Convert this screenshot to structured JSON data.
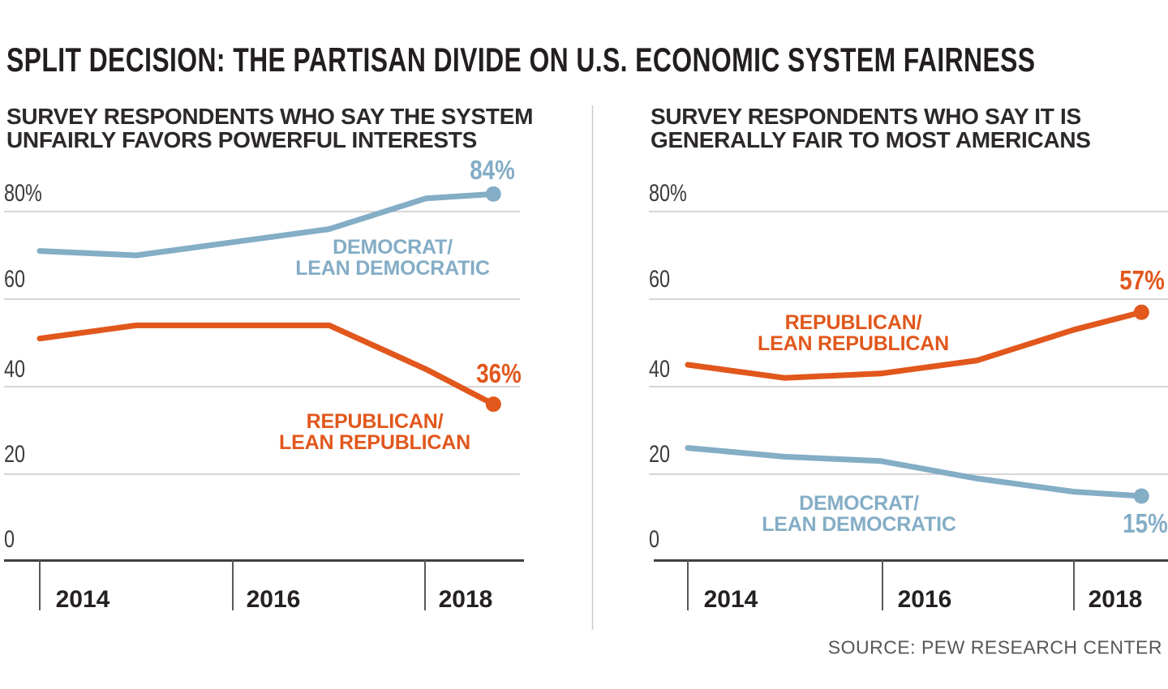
{
  "page": {
    "title": "SPLIT DECISION: THE PARTISAN DIVIDE ON U.S. ECONOMIC SYSTEM FAIRNESS",
    "source": "SOURCE: PEW RESEARCH CENTER",
    "background": "#ffffff",
    "gridline_color": "#c9c9c9",
    "axis_color": "#403f41"
  },
  "chart_data": [
    {
      "type": "line",
      "subtitle": "SURVEY RESPONDENTS WHO SAY THE SYSTEM\nUNFAIRLY FAVORS POWERFUL INTERESTS",
      "x": [
        2014,
        2015,
        2016,
        2017,
        2018,
        2018.7
      ],
      "x_tick_labels": [
        "2014",
        "2016",
        "2018"
      ],
      "y_tick_labels": [
        "80%",
        "60",
        "40",
        "20",
        "0"
      ],
      "y_gridline_values": [
        80,
        60,
        40,
        20
      ],
      "ylim": [
        0,
        90
      ],
      "grid": true,
      "legend_position": "inline-annotations",
      "series": [
        {
          "name": "Democrat/Lean Democratic",
          "label": "DEMOCRAT/\nLEAN DEMOCRATIC",
          "end_label": "84%",
          "color": "#84adc6",
          "values": [
            71,
            70,
            73,
            76,
            83,
            84
          ]
        },
        {
          "name": "Republican/Lean Republican",
          "label": "REPUBLICAN/\nLEAN REPUBLICAN",
          "end_label": "36%",
          "color": "#e1571c",
          "values": [
            51,
            54,
            54,
            54,
            44,
            36
          ]
        }
      ]
    },
    {
      "type": "line",
      "subtitle": "SURVEY RESPONDENTS WHO SAY IT IS\nGENERALLY FAIR TO MOST AMERICANS",
      "x": [
        2014,
        2015,
        2016,
        2017,
        2018,
        2018.7
      ],
      "x_tick_labels": [
        "2014",
        "2016",
        "2018"
      ],
      "y_tick_labels": [
        "80%",
        "60",
        "40",
        "20",
        "0"
      ],
      "y_gridline_values": [
        80,
        60,
        40,
        20
      ],
      "ylim": [
        0,
        90
      ],
      "grid": true,
      "legend_position": "inline-annotations",
      "series": [
        {
          "name": "Republican/Lean Republican",
          "label": "REPUBLICAN/\nLEAN REPUBLICAN",
          "end_label": "57%",
          "color": "#e1571c",
          "values": [
            45,
            42,
            43,
            46,
            53,
            57
          ]
        },
        {
          "name": "Democrat/Lean Democratic",
          "label": "DEMOCRAT/\nLEAN DEMOCRATIC",
          "end_label": "15%",
          "color": "#84adc6",
          "values": [
            26,
            24,
            23,
            19,
            16,
            15
          ]
        }
      ]
    }
  ]
}
